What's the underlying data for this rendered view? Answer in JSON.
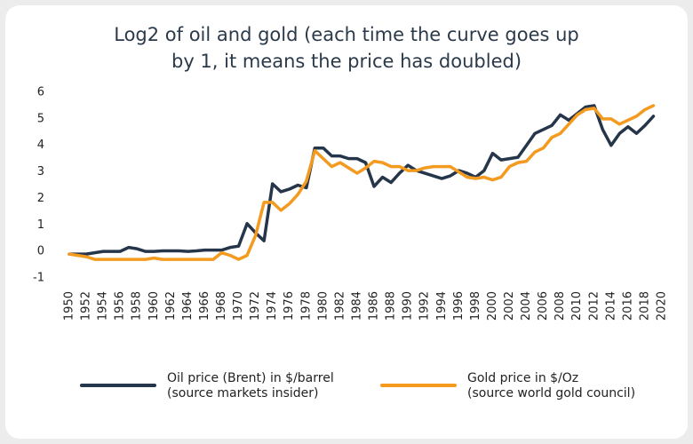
{
  "chart_data": {
    "type": "line",
    "title": "Log2 of oil and gold (each time the curve goes up\nby 1, it means the price has doubled)",
    "x": [
      1950,
      1951,
      1952,
      1953,
      1954,
      1955,
      1956,
      1957,
      1958,
      1959,
      1960,
      1961,
      1962,
      1963,
      1964,
      1965,
      1966,
      1967,
      1968,
      1969,
      1970,
      1971,
      1972,
      1973,
      1974,
      1975,
      1976,
      1977,
      1978,
      1979,
      1980,
      1981,
      1982,
      1983,
      1984,
      1985,
      1986,
      1987,
      1988,
      1989,
      1990,
      1991,
      1992,
      1993,
      1994,
      1995,
      1996,
      1997,
      1998,
      1999,
      2000,
      2001,
      2002,
      2003,
      2004,
      2005,
      2006,
      2007,
      2008,
      2009,
      2010,
      2011,
      2012,
      2013,
      2014,
      2015,
      2016,
      2017,
      2018,
      2019
    ],
    "series": [
      {
        "name": "Oil price (Brent) in $/barrel\n(source markets insider)",
        "color": "#26364a",
        "values": [
          -0.1,
          -0.1,
          -0.1,
          -0.05,
          0,
          0,
          0,
          0.15,
          0.1,
          0,
          0,
          0.02,
          0.02,
          0.02,
          0,
          0.02,
          0.05,
          0.05,
          0.05,
          0.15,
          0.2,
          1.05,
          0.7,
          0.4,
          2.55,
          2.25,
          2.35,
          2.5,
          2.4,
          3.9,
          3.9,
          3.6,
          3.6,
          3.5,
          3.5,
          3.35,
          2.45,
          2.8,
          2.6,
          2.95,
          3.25,
          3.05,
          2.95,
          2.85,
          2.75,
          2.85,
          3.05,
          2.95,
          2.8,
          3.05,
          3.7,
          3.45,
          3.5,
          3.55,
          4.0,
          4.45,
          4.6,
          4.75,
          5.15,
          4.95,
          5.2,
          5.45,
          5.5,
          4.6,
          4.0,
          4.45,
          4.7,
          4.45,
          4.75,
          5.1
        ]
      },
      {
        "name": "Gold price in $/Oz\n(source world gold council)",
        "color": "#f39a1f",
        "values": [
          -0.1,
          -0.15,
          -0.2,
          -0.3,
          -0.3,
          -0.3,
          -0.3,
          -0.3,
          -0.3,
          -0.3,
          -0.25,
          -0.3,
          -0.3,
          -0.3,
          -0.3,
          -0.3,
          -0.3,
          -0.3,
          -0.05,
          -0.15,
          -0.3,
          -0.15,
          0.6,
          1.85,
          1.85,
          1.55,
          1.8,
          2.15,
          2.65,
          3.8,
          3.5,
          3.2,
          3.35,
          3.15,
          2.95,
          3.15,
          3.4,
          3.35,
          3.2,
          3.2,
          3.05,
          3.05,
          3.15,
          3.2,
          3.2,
          3.2,
          3.0,
          2.8,
          2.75,
          2.8,
          2.7,
          2.8,
          3.2,
          3.35,
          3.4,
          3.75,
          3.9,
          4.3,
          4.45,
          4.8,
          5.15,
          5.35,
          5.4,
          5.0,
          5.0,
          4.8,
          4.95,
          5.1,
          5.35,
          5.5
        ]
      }
    ],
    "xlim": [
      1950,
      2020
    ],
    "xticks": [
      1950,
      1952,
      1954,
      1956,
      1958,
      1960,
      1962,
      1964,
      1966,
      1968,
      1970,
      1972,
      1974,
      1976,
      1978,
      1980,
      1982,
      1984,
      1986,
      1988,
      1990,
      1992,
      1994,
      1996,
      1998,
      2000,
      2002,
      2004,
      2006,
      2008,
      2010,
      2012,
      2014,
      2016,
      2018,
      2020
    ],
    "ylim": [
      -1,
      6
    ],
    "yticks": [
      -1,
      0,
      1,
      2,
      3,
      4,
      5,
      6
    ],
    "grid": false
  }
}
